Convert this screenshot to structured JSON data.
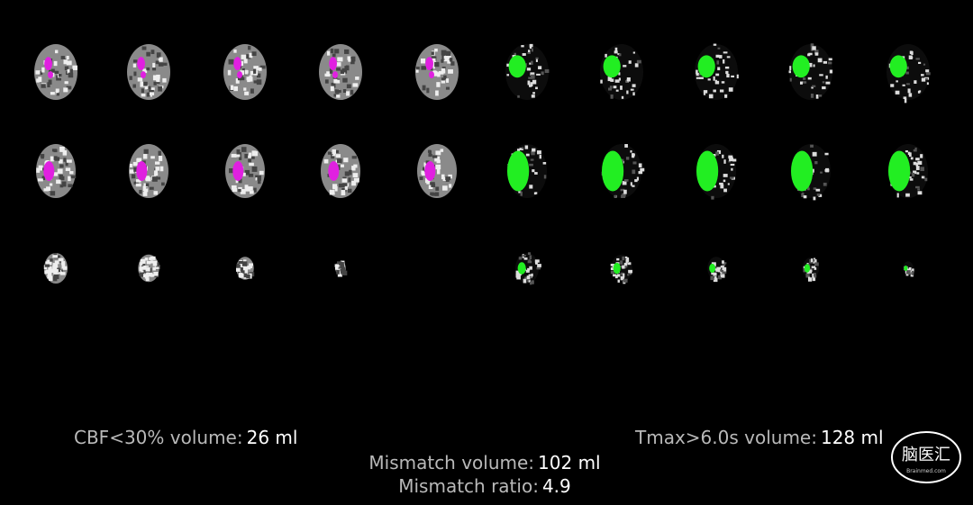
{
  "summaries": {
    "cbf": {
      "label": "CBF<30% volume:",
      "value": "26 ml"
    },
    "tmax": {
      "label": "Tmax>6.0s volume:",
      "value": "128 ml"
    },
    "mismatch_volume": {
      "label": "Mismatch volume:",
      "value": "102 ml"
    },
    "mismatch_ratio": {
      "label": "Mismatch ratio:",
      "value": "4.9"
    }
  },
  "watermark": {
    "text": "脑医汇",
    "subtext": "Brainmed.com"
  }
}
